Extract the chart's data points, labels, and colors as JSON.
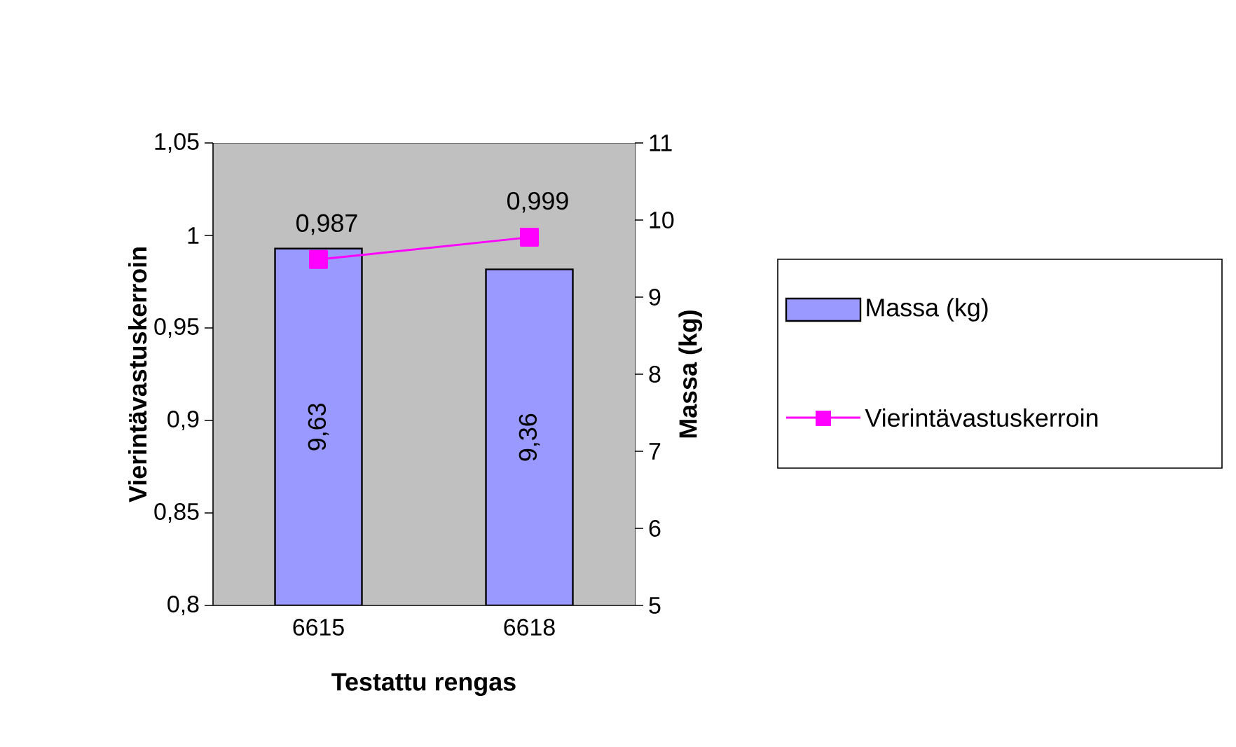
{
  "chart_data": {
    "type": "bar",
    "xlabel": "Testattu rengas",
    "ylabel": "Vierintävastuskerroin",
    "y2label": "Massa (kg)",
    "categories": [
      "6615",
      "6618"
    ],
    "series": [
      {
        "name": "Massa (kg)",
        "axis": "y2",
        "color": "#9999ff",
        "values": [
          9.63,
          9.36
        ],
        "value_labels": [
          "9,63",
          "9,36"
        ]
      },
      {
        "name": "Vierintävastuskerroin",
        "type": "line",
        "color": "#ff00ff",
        "marker": "square",
        "values": [
          0.987,
          0.999
        ],
        "value_labels": [
          "0,987",
          "0,999"
        ]
      }
    ],
    "ylim": [
      0.8,
      1.05
    ],
    "yticks": [
      {
        "value": 0.8,
        "label": "0,8"
      },
      {
        "value": 0.85,
        "label": "0,85"
      },
      {
        "value": 0.9,
        "label": "0,9"
      },
      {
        "value": 0.95,
        "label": "0,95"
      },
      {
        "value": 1,
        "label": "1"
      },
      {
        "value": 1.05,
        "label": "1,05"
      }
    ],
    "y2lim": [
      5,
      11
    ],
    "y2ticks": [
      5,
      6,
      7,
      8,
      9,
      10,
      11
    ],
    "grid": false,
    "legend": "right"
  }
}
